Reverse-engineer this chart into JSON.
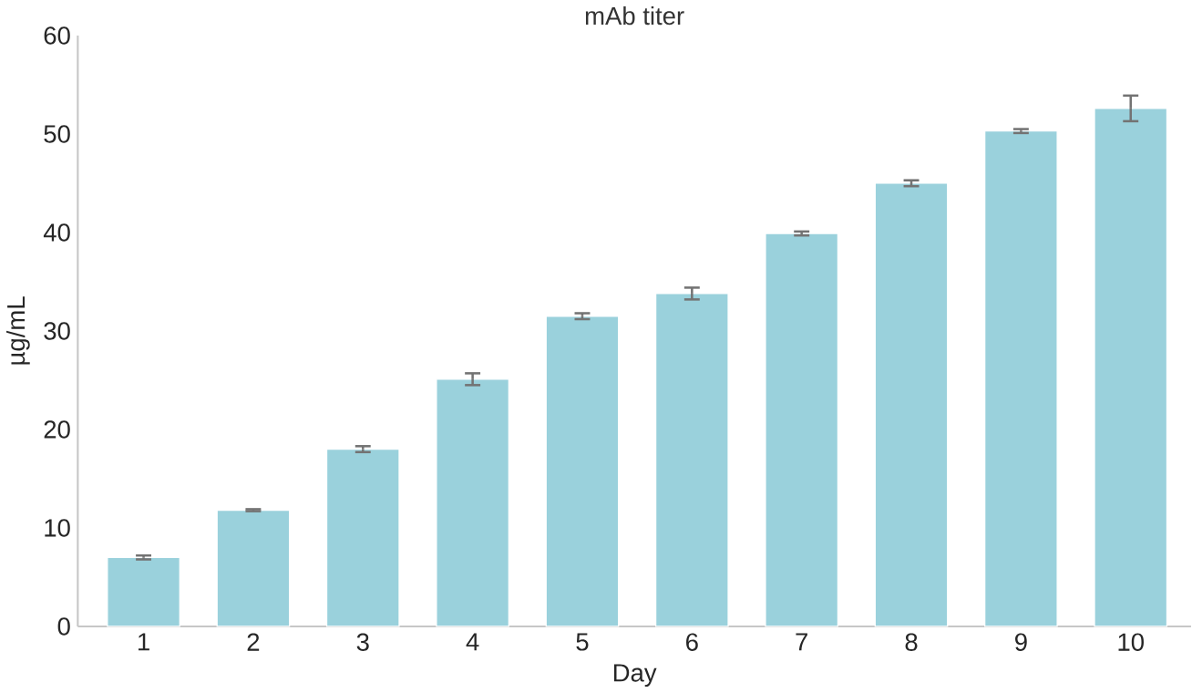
{
  "chart_data": {
    "type": "bar",
    "title": "mAb titer",
    "xlabel": "Day",
    "ylabel": "µg/mL",
    "categories": [
      "1",
      "2",
      "3",
      "4",
      "5",
      "6",
      "7",
      "8",
      "9",
      "10"
    ],
    "values": [
      7.0,
      11.8,
      18.0,
      25.1,
      31.5,
      33.8,
      39.9,
      45.0,
      50.3,
      52.6
    ],
    "errors": [
      0.2,
      0.1,
      0.3,
      0.6,
      0.3,
      0.6,
      0.2,
      0.3,
      0.2,
      1.3
    ],
    "color": "#9ad1dc",
    "ylim": [
      0,
      60
    ],
    "yticks": [
      0,
      10,
      20,
      30,
      40,
      50,
      60
    ],
    "grid": false
  }
}
